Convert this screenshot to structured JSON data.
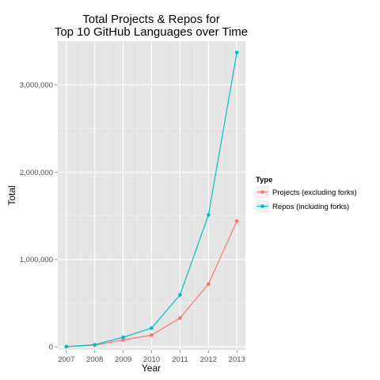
{
  "chart_data": {
    "type": "line",
    "title_lines": [
      "Total Projects & Repos for",
      "Top 10 GitHub Languages over Time"
    ],
    "xlabel": "Year",
    "ylabel": "Total",
    "x": [
      2007,
      2008,
      2009,
      2010,
      2011,
      2012,
      2013
    ],
    "x_tick_labels": [
      "2007",
      "2008",
      "2009",
      "2010",
      "2011",
      "2012",
      "2013"
    ],
    "y_ticks": [
      0,
      1000000,
      2000000,
      3000000
    ],
    "y_tick_labels": [
      "0",
      "1,000,000",
      "2,000,000",
      "3,000,000"
    ],
    "ylim": [
      -35000,
      3500000
    ],
    "grid": true,
    "legend": {
      "title": "Type",
      "placement": "right"
    },
    "series": [
      {
        "name": "Projects (excluding forks)",
        "color": "#F8766D",
        "values": [
          2000,
          18000,
          80000,
          135000,
          330000,
          720000,
          1440000
        ]
      },
      {
        "name": "Repos (including forks)",
        "color": "#00BFC4",
        "values": [
          3000,
          25000,
          110000,
          215000,
          595000,
          1510000,
          3370000
        ]
      }
    ]
  }
}
